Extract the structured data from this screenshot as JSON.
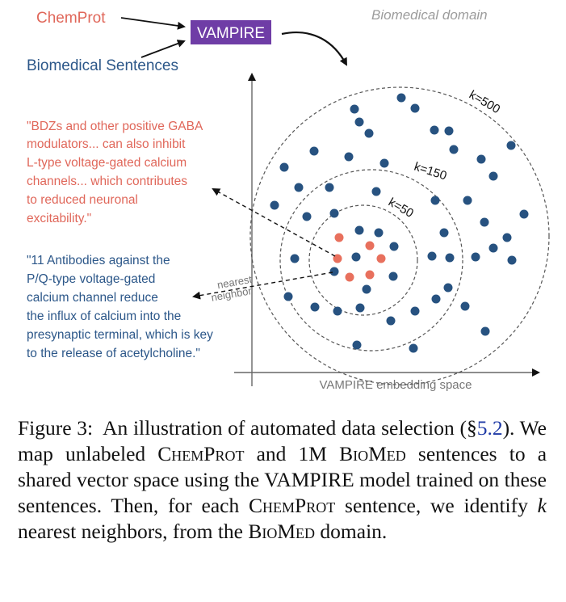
{
  "inputs": {
    "chemprot": "ChemProt",
    "biomed": "Biomedical Sentences",
    "model": "VAMPIRE"
  },
  "domain_label": "Biomedical domain",
  "x_axis_label": "VAMPIRE embedding space",
  "rings": [
    "k=500",
    "k=150",
    "k=50"
  ],
  "neighbor_label": [
    "nearest",
    "neighbor"
  ],
  "chemprot_quote": [
    "\"BDZs and other positive GABA",
    "modulators... can also inhibit",
    "L-type voltage-gated calcium",
    "channels... which contributes",
    "to reduced neuronal",
    "excitability.\""
  ],
  "biomed_quote": [
    "\"11 Antibodies against the",
    "P/Q-type voltage-gated",
    "calcium channel reduce",
    "the influx of calcium into the",
    "presynaptic terminal, which is key",
    "to the release of acetylcholine.\""
  ],
  "colors": {
    "chemprot": "#e0675a",
    "biomed": "#2c5789",
    "model_box": "#6f3da6",
    "dot_blue": "#275280",
    "dot_red": "#e8705d"
  },
  "caption": {
    "figure": "Figure 3:",
    "t1": "An illustration of automated data selection (",
    "section": "§",
    "ref": "5.2",
    "t2": "). We map unlabeled ",
    "chemprot": "ChemProt",
    "t3": " and 1M ",
    "biomed": "BioMed",
    "t4": " sentences to a shared vector space using the VAMPIRE model trained on these sentences. Then, for each ",
    "chemprot2": "ChemProt",
    "t5": " sentence, we identify ",
    "k": "k",
    "t6": " nearest neighbors, from the ",
    "biomed2": "BioMed",
    "t7": " domain."
  }
}
